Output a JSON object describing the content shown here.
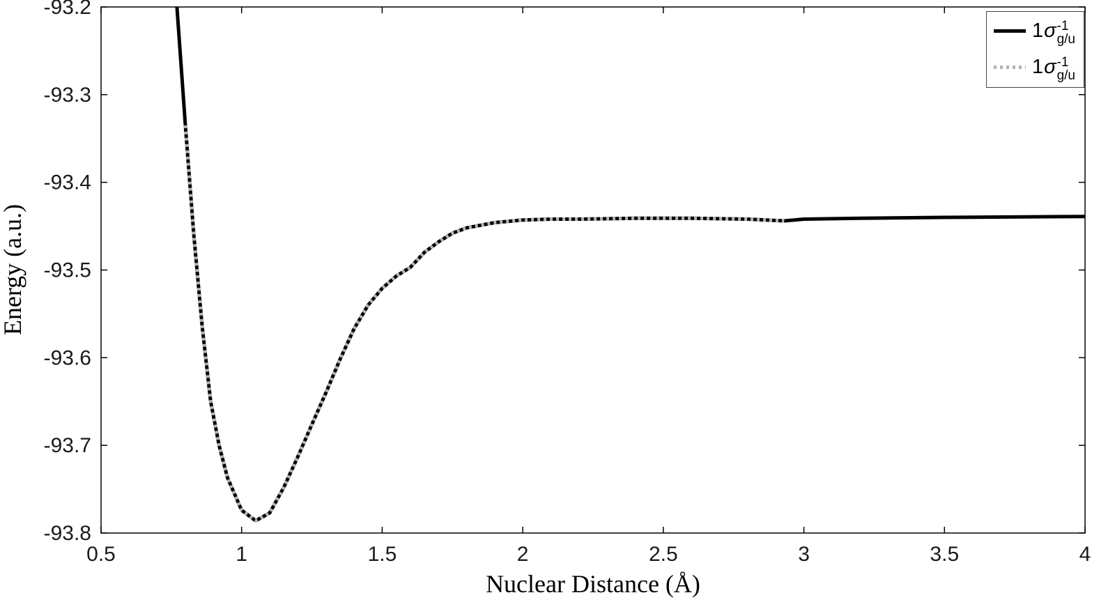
{
  "figure": {
    "background": "#ffffff",
    "axis_color": "#000000",
    "tick_label_color": "#1a1a1a"
  },
  "chart_data": {
    "type": "line",
    "title": "",
    "xlabel": "Nuclear Distance (Å)",
    "ylabel": "Energy (a.u.)",
    "xlim": [
      0.5,
      4
    ],
    "ylim": [
      -93.8,
      -93.2
    ],
    "grid": false,
    "legend_position": "top-right",
    "xticks": [
      0.5,
      1,
      1.5,
      2,
      2.5,
      3,
      3.5,
      4
    ],
    "xtick_labels": [
      "0.5",
      "1",
      "1.5",
      "2",
      "2.5",
      "3",
      "3.5",
      "4"
    ],
    "yticks": [
      -93.8,
      -93.7,
      -93.6,
      -93.5,
      -93.4,
      -93.3,
      -93.2
    ],
    "ytick_labels": [
      "-93.8",
      "-93.7",
      "-93.6",
      "-93.5",
      "-93.4",
      "-93.3",
      "-93.2"
    ],
    "series": [
      {
        "name": "1σ⁻¹ g/u (solid)",
        "color": "#000000",
        "line_style": "solid",
        "line_width": 5,
        "x": [
          0.77,
          0.8,
          0.83,
          0.86,
          0.89,
          0.92,
          0.95,
          1.0,
          1.05,
          1.1,
          1.15,
          1.2,
          1.25,
          1.3,
          1.35,
          1.4,
          1.45,
          1.5,
          1.55,
          1.6,
          1.65,
          1.7,
          1.75,
          1.8,
          1.9,
          2.0,
          2.1,
          2.2,
          2.4,
          2.6,
          2.8,
          2.93,
          3.0,
          3.2,
          3.5,
          4.0
        ],
        "y": [
          -93.2,
          -93.335,
          -93.46,
          -93.565,
          -93.65,
          -93.7,
          -93.737,
          -93.774,
          -93.786,
          -93.777,
          -93.748,
          -93.713,
          -93.676,
          -93.64,
          -93.602,
          -93.567,
          -93.54,
          -93.521,
          -93.507,
          -93.497,
          -93.48,
          -93.468,
          -93.458,
          -93.452,
          -93.446,
          -93.443,
          -93.442,
          -93.442,
          -93.441,
          -93.441,
          -93.442,
          -93.444,
          -93.442,
          -93.441,
          -93.44,
          -93.439
        ]
      },
      {
        "name": "1σ⁻¹ g/u (dotted)",
        "color": "#b3b3b3",
        "line_style": "dotted",
        "line_width": 5,
        "x": [
          0.8,
          0.83,
          0.86,
          0.89,
          0.92,
          0.95,
          1.0,
          1.05,
          1.1,
          1.15,
          1.2,
          1.25,
          1.3,
          1.35,
          1.4,
          1.45,
          1.5,
          1.55,
          1.6,
          1.65,
          1.7,
          1.75,
          1.8,
          1.9,
          2.0,
          2.1,
          2.2,
          2.4,
          2.6,
          2.8,
          2.93
        ],
        "y": [
          -93.335,
          -93.46,
          -93.565,
          -93.65,
          -93.7,
          -93.737,
          -93.774,
          -93.786,
          -93.777,
          -93.748,
          -93.713,
          -93.676,
          -93.64,
          -93.602,
          -93.567,
          -93.54,
          -93.521,
          -93.507,
          -93.497,
          -93.48,
          -93.468,
          -93.458,
          -93.452,
          -93.446,
          -93.443,
          -93.442,
          -93.442,
          -93.441,
          -93.441,
          -93.442,
          -93.444
        ]
      }
    ],
    "legend_entries": [
      {
        "prefix": "1",
        "symbol": "σ",
        "sup": "-1",
        "sub": "g/u",
        "line_style": "solid"
      },
      {
        "prefix": "1",
        "symbol": "σ",
        "sup": "-1",
        "sub": "g/u",
        "line_style": "dotted"
      }
    ]
  }
}
